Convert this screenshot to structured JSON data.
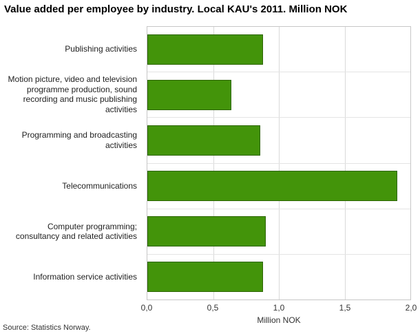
{
  "chart_data": {
    "type": "bar",
    "orientation": "horizontal",
    "title": "Value added per employee by industry. Local KAU's 2011. Million NOK",
    "categories": [
      "Publishing activities",
      "Motion picture, video and television programme production, sound recording and music publishing activities",
      "Programming and broadcasting activities",
      "Telecommunications",
      "Computer programming; consultancy and related activities",
      "Information service activities"
    ],
    "values": [
      0.88,
      0.64,
      0.86,
      1.9,
      0.9,
      0.88
    ],
    "xlabel": "Million NOK",
    "ylabel": "",
    "xlim": [
      0,
      2
    ],
    "xticks": [
      "0,0",
      "0,5",
      "1,0",
      "1,5",
      "2,0"
    ],
    "grid": true,
    "legend": false,
    "bar_color": "#43940a",
    "bar_border_color": "#2c6502",
    "gridline_color": "#d9d9d9"
  },
  "source": "Source: Statistics Norway."
}
